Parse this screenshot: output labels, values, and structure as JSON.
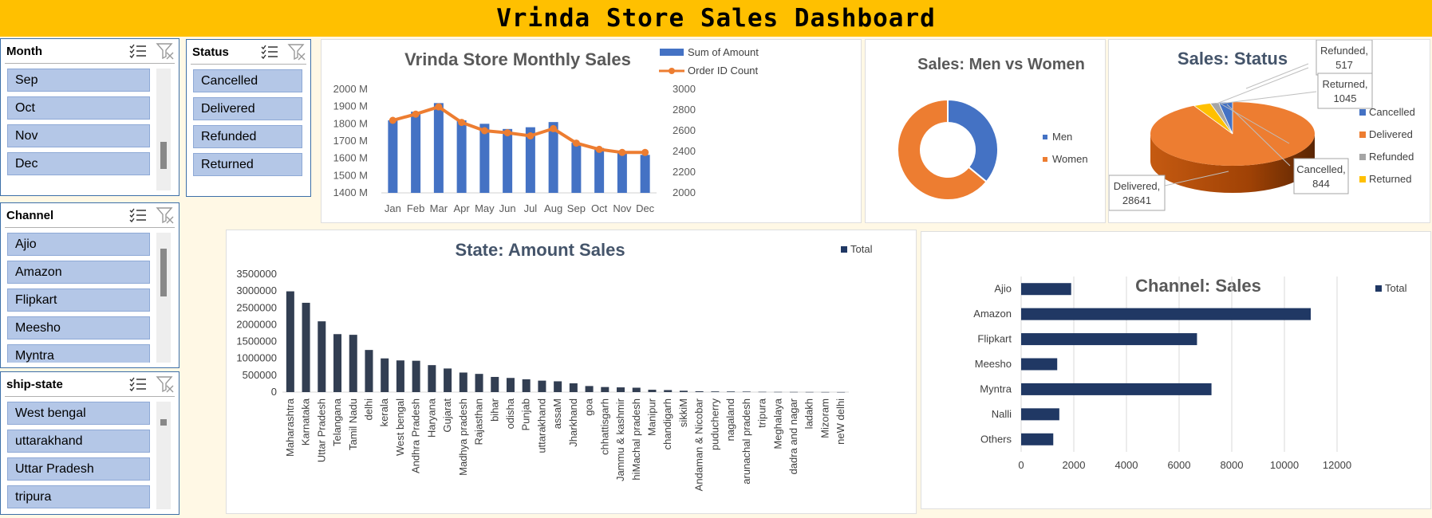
{
  "dashboard_title": "Vrinda Store Sales Dashboard",
  "colors": {
    "header": "#ffc000",
    "slicer_item": "#b4c7e7",
    "bar_blue": "#4472c4",
    "line_orange": "#ed7d31",
    "navy": "#203864",
    "grey": "#a5a5a5",
    "gold": "#ffc000"
  },
  "slicers": {
    "month": {
      "title": "Month",
      "items": [
        "Sep",
        "Oct",
        "Nov",
        "Dec"
      ]
    },
    "status": {
      "title": "Status",
      "items": [
        "Cancelled",
        "Delivered",
        "Refunded",
        "Returned"
      ]
    },
    "channel": {
      "title": "Channel",
      "items": [
        "Ajio",
        "Amazon",
        "Flipkart",
        "Meesho",
        "Myntra"
      ]
    },
    "ship_state": {
      "title": "ship-state",
      "items": [
        "West bengal",
        "uttarakhand",
        "Uttar Pradesh",
        "tripura"
      ]
    }
  },
  "chart_data": [
    {
      "type": "bar",
      "title": "Vrinda Store Monthly Sales",
      "categories": [
        "Jan",
        "Feb",
        "Mar",
        "Apr",
        "May",
        "Jun",
        "Jul",
        "Aug",
        "Sep",
        "Oct",
        "Nov",
        "Dec"
      ],
      "series": [
        {
          "name": "Sum of Amount",
          "type": "bar",
          "axis": "left",
          "values": [
            1820,
            1870,
            1920,
            1820,
            1800,
            1770,
            1780,
            1810,
            1690,
            1660,
            1630,
            1620
          ]
        },
        {
          "name": "Order ID Count",
          "type": "line",
          "axis": "right",
          "values": [
            2700,
            2760,
            2830,
            2680,
            2600,
            2580,
            2550,
            2620,
            2480,
            2420,
            2390,
            2390
          ]
        }
      ],
      "y_left_ticks": [
        "1400 M",
        "1500 M",
        "1600 M",
        "1700 M",
        "1800 M",
        "1900 M",
        "2000 M"
      ],
      "y_right_ticks": [
        "2000",
        "2200",
        "2400",
        "2600",
        "2800",
        "3000"
      ],
      "ylim_left": [
        1400,
        2000
      ],
      "ylim_right": [
        2000,
        3000
      ],
      "legend": "top-right",
      "grid": false
    },
    {
      "type": "pie",
      "subtype": "donut",
      "title": "Sales: Men vs Women",
      "labels": [
        "Men",
        "Women"
      ],
      "values": [
        36,
        64
      ],
      "legend": "right"
    },
    {
      "type": "pie",
      "subtype": "3d",
      "title": "Sales: Status",
      "labels": [
        "Cancelled",
        "Delivered",
        "Refunded",
        "Returned"
      ],
      "values": [
        844,
        28641,
        517,
        1045
      ],
      "data_labels": [
        {
          "name": "Refunded,",
          "value": "517"
        },
        {
          "name": "Returned,",
          "value": "1045"
        },
        {
          "name": "Cancelled,",
          "value": "844"
        },
        {
          "name": "Delivered,",
          "value": "28641"
        }
      ],
      "legend": "right"
    },
    {
      "type": "bar",
      "title": "State: Amount Sales",
      "legend_label": "Total",
      "categories": [
        "Maharashtra",
        "Karnataka",
        "Uttar Pradesh",
        "Telangana",
        "Tamil Nadu",
        "delhi",
        "kerala",
        "West bengal",
        "Andhra Pradesh",
        "Haryana",
        "Gujarat",
        "Madhya pradesh",
        "Rajasthan",
        "bihar",
        "odisha",
        "Punjab",
        "uttarakhand",
        "assaM",
        "Jharkhand",
        "goa",
        "chhattisgarh",
        "Jammu & kashmir",
        "hiMachal pradesh",
        "Manipur",
        "chandigarh",
        "sikkiM",
        "Andaman & Nicobar",
        "puducherry",
        "nagaland",
        "arunachal pradesh",
        "tripura",
        "Meghalaya",
        "dadra and nagar",
        "ladakh",
        "Mizoram",
        "neW delhi"
      ],
      "values": [
        2990000,
        2650000,
        2100000,
        1720000,
        1700000,
        1250000,
        1000000,
        940000,
        930000,
        800000,
        700000,
        580000,
        540000,
        450000,
        420000,
        380000,
        340000,
        320000,
        260000,
        180000,
        150000,
        140000,
        130000,
        70000,
        60000,
        40000,
        25000,
        20000,
        18000,
        15000,
        8000,
        6000,
        5000,
        4000,
        3000,
        2000
      ],
      "y_ticks": [
        "0",
        "500000",
        "1000000",
        "1500000",
        "2000000",
        "2500000",
        "3000000",
        "3500000"
      ],
      "ylim": [
        0,
        3500000
      ],
      "legend": "top-right"
    },
    {
      "type": "bar",
      "orientation": "horizontal",
      "title": "Channel: Sales",
      "legend_label": "Total",
      "categories": [
        "Ajio",
        "Amazon",
        "Flipkart",
        "Meesho",
        "Myntra",
        "Nalli",
        "Others"
      ],
      "values": [
        1900,
        11000,
        6680,
        1370,
        7230,
        1450,
        1220
      ],
      "x_ticks": [
        "0",
        "2000",
        "4000",
        "6000",
        "8000",
        "10000",
        "12000"
      ],
      "xlim": [
        0,
        12000
      ],
      "legend": "top-right",
      "grid": true
    }
  ]
}
